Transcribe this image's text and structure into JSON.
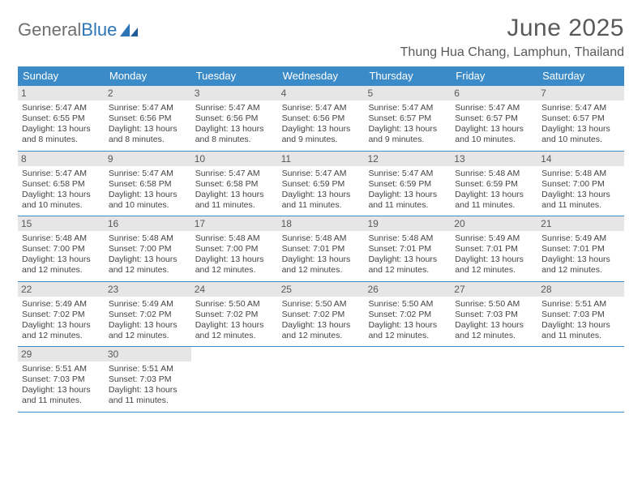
{
  "brand": {
    "word1": "General",
    "word2": "Blue"
  },
  "title": "June 2025",
  "location": "Thung Hua Chang, Lamphun, Thailand",
  "colors": {
    "header_bg": "#3b8bc9",
    "header_text": "#ffffff",
    "daynum_bg": "#e6e6e6",
    "border": "#3b8bc9",
    "logo_gray": "#6f6f6f",
    "logo_blue": "#2e75b6"
  },
  "typography": {
    "title_fontsize": 30,
    "location_fontsize": 16,
    "dayhead_fontsize": 13,
    "daynum_fontsize": 12,
    "body_fontsize": 10.5
  },
  "day_headers": [
    "Sunday",
    "Monday",
    "Tuesday",
    "Wednesday",
    "Thursday",
    "Friday",
    "Saturday"
  ],
  "weeks": [
    [
      {
        "n": "1",
        "sr": "5:47 AM",
        "ss": "6:55 PM",
        "dl": "13 hours and 8 minutes."
      },
      {
        "n": "2",
        "sr": "5:47 AM",
        "ss": "6:56 PM",
        "dl": "13 hours and 8 minutes."
      },
      {
        "n": "3",
        "sr": "5:47 AM",
        "ss": "6:56 PM",
        "dl": "13 hours and 8 minutes."
      },
      {
        "n": "4",
        "sr": "5:47 AM",
        "ss": "6:56 PM",
        "dl": "13 hours and 9 minutes."
      },
      {
        "n": "5",
        "sr": "5:47 AM",
        "ss": "6:57 PM",
        "dl": "13 hours and 9 minutes."
      },
      {
        "n": "6",
        "sr": "5:47 AM",
        "ss": "6:57 PM",
        "dl": "13 hours and 10 minutes."
      },
      {
        "n": "7",
        "sr": "5:47 AM",
        "ss": "6:57 PM",
        "dl": "13 hours and 10 minutes."
      }
    ],
    [
      {
        "n": "8",
        "sr": "5:47 AM",
        "ss": "6:58 PM",
        "dl": "13 hours and 10 minutes."
      },
      {
        "n": "9",
        "sr": "5:47 AM",
        "ss": "6:58 PM",
        "dl": "13 hours and 10 minutes."
      },
      {
        "n": "10",
        "sr": "5:47 AM",
        "ss": "6:58 PM",
        "dl": "13 hours and 11 minutes."
      },
      {
        "n": "11",
        "sr": "5:47 AM",
        "ss": "6:59 PM",
        "dl": "13 hours and 11 minutes."
      },
      {
        "n": "12",
        "sr": "5:47 AM",
        "ss": "6:59 PM",
        "dl": "13 hours and 11 minutes."
      },
      {
        "n": "13",
        "sr": "5:48 AM",
        "ss": "6:59 PM",
        "dl": "13 hours and 11 minutes."
      },
      {
        "n": "14",
        "sr": "5:48 AM",
        "ss": "7:00 PM",
        "dl": "13 hours and 11 minutes."
      }
    ],
    [
      {
        "n": "15",
        "sr": "5:48 AM",
        "ss": "7:00 PM",
        "dl": "13 hours and 12 minutes."
      },
      {
        "n": "16",
        "sr": "5:48 AM",
        "ss": "7:00 PM",
        "dl": "13 hours and 12 minutes."
      },
      {
        "n": "17",
        "sr": "5:48 AM",
        "ss": "7:00 PM",
        "dl": "13 hours and 12 minutes."
      },
      {
        "n": "18",
        "sr": "5:48 AM",
        "ss": "7:01 PM",
        "dl": "13 hours and 12 minutes."
      },
      {
        "n": "19",
        "sr": "5:48 AM",
        "ss": "7:01 PM",
        "dl": "13 hours and 12 minutes."
      },
      {
        "n": "20",
        "sr": "5:49 AM",
        "ss": "7:01 PM",
        "dl": "13 hours and 12 minutes."
      },
      {
        "n": "21",
        "sr": "5:49 AM",
        "ss": "7:01 PM",
        "dl": "13 hours and 12 minutes."
      }
    ],
    [
      {
        "n": "22",
        "sr": "5:49 AM",
        "ss": "7:02 PM",
        "dl": "13 hours and 12 minutes."
      },
      {
        "n": "23",
        "sr": "5:49 AM",
        "ss": "7:02 PM",
        "dl": "13 hours and 12 minutes."
      },
      {
        "n": "24",
        "sr": "5:50 AM",
        "ss": "7:02 PM",
        "dl": "13 hours and 12 minutes."
      },
      {
        "n": "25",
        "sr": "5:50 AM",
        "ss": "7:02 PM",
        "dl": "13 hours and 12 minutes."
      },
      {
        "n": "26",
        "sr": "5:50 AM",
        "ss": "7:02 PM",
        "dl": "13 hours and 12 minutes."
      },
      {
        "n": "27",
        "sr": "5:50 AM",
        "ss": "7:03 PM",
        "dl": "13 hours and 12 minutes."
      },
      {
        "n": "28",
        "sr": "5:51 AM",
        "ss": "7:03 PM",
        "dl": "13 hours and 11 minutes."
      }
    ],
    [
      {
        "n": "29",
        "sr": "5:51 AM",
        "ss": "7:03 PM",
        "dl": "13 hours and 11 minutes."
      },
      {
        "n": "30",
        "sr": "5:51 AM",
        "ss": "7:03 PM",
        "dl": "13 hours and 11 minutes."
      },
      null,
      null,
      null,
      null,
      null
    ]
  ],
  "labels": {
    "sunrise": "Sunrise:",
    "sunset": "Sunset:",
    "daylight": "Daylight:"
  }
}
